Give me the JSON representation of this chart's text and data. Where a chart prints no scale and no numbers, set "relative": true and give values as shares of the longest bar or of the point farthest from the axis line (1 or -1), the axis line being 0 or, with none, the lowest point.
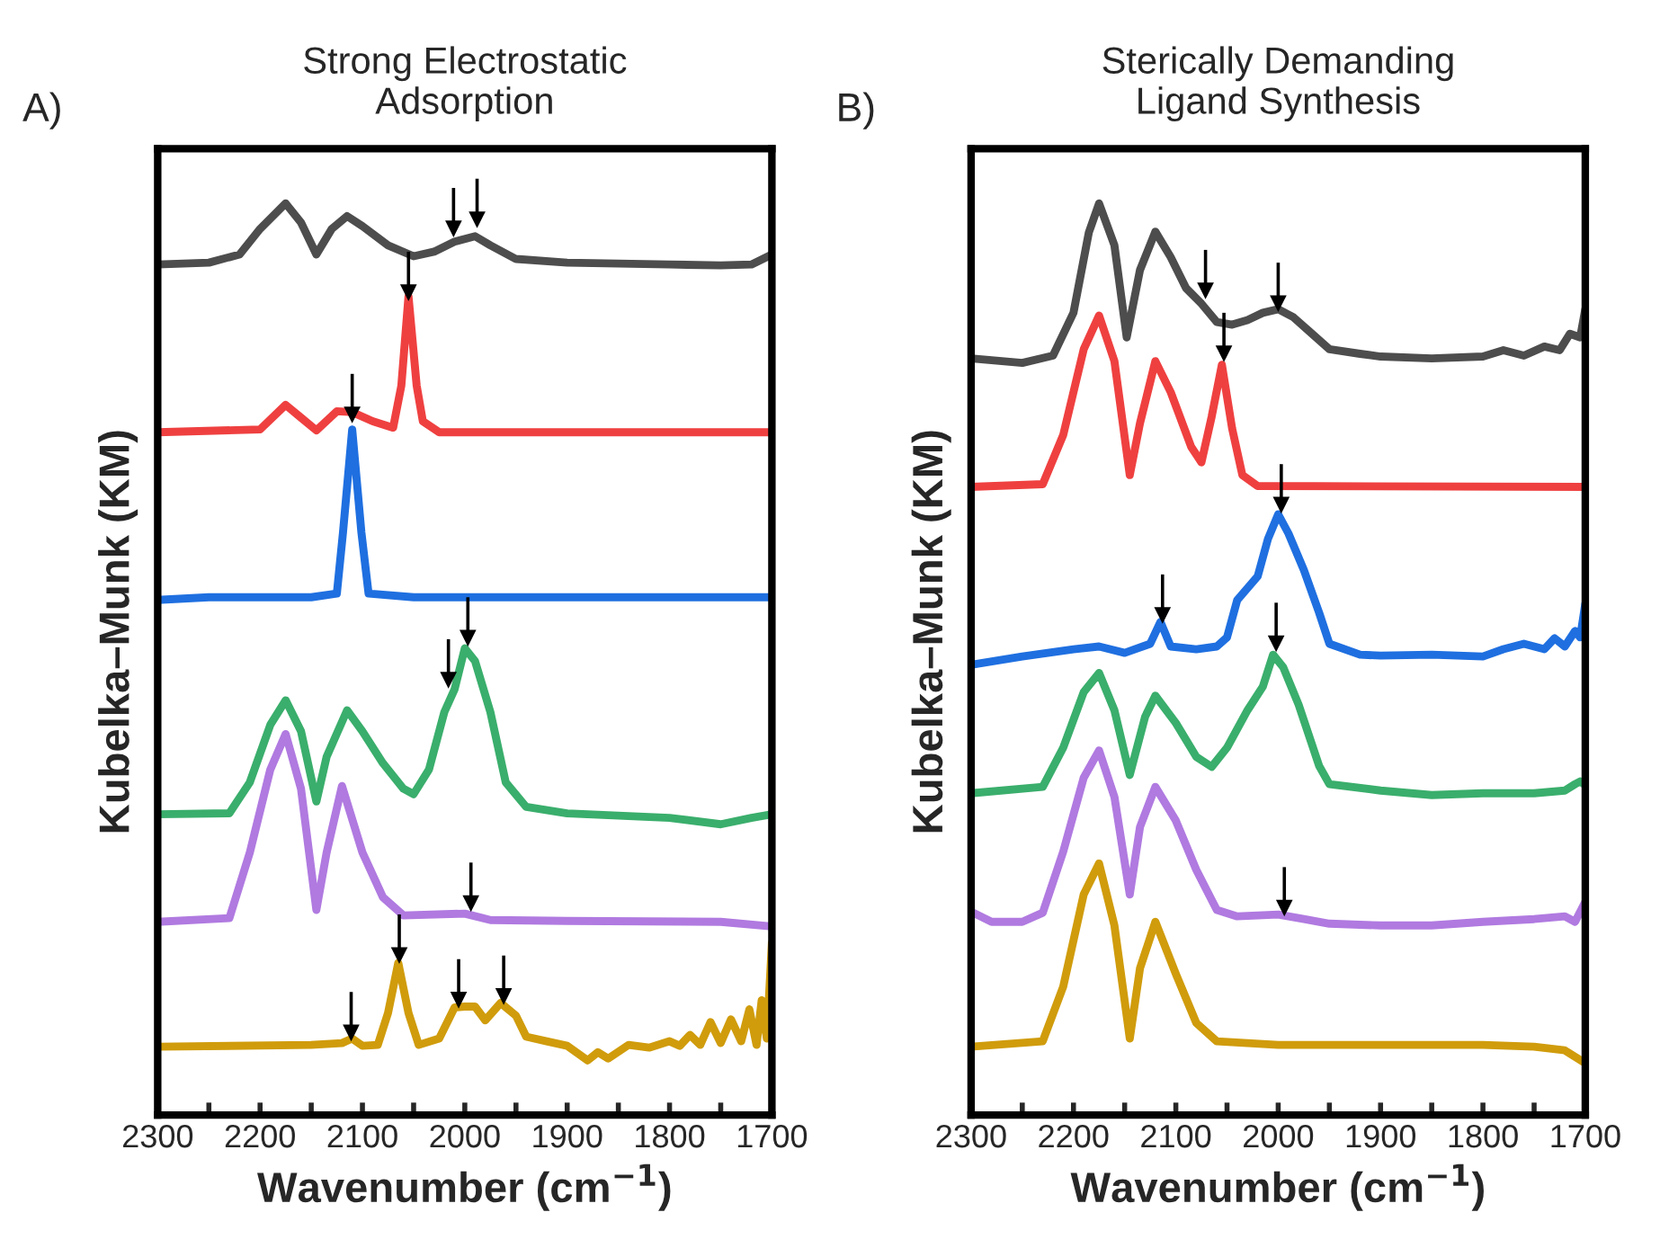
{
  "chart_data": [
    {
      "type": "line",
      "title": "Strong Electrostatic\nAdsorption",
      "xlabel": "Wavenumber (cm$^{−1}$)",
      "ylabel": "Kubelka–Munk (KM)",
      "relative": true,
      "xlim": [
        2300,
        1700
      ],
      "xticks": [
        2300,
        {
          "value": 2250,
          "label": null
        },
        2200,
        {
          "value": 2150,
          "label": null
        },
        2100,
        {
          "value": 2050,
          "label": null
        },
        2000,
        {
          "value": 1950,
          "label": null
        },
        1900,
        {
          "value": 1850,
          "label": null
        },
        1800,
        {
          "value": 1750,
          "label": null
        },
        1700
      ],
      "grid": false,
      "legend": false,
      "tick_labels": "x",
      "annotations": [
        "A)"
      ],
      "series": [
        {
          "type": "scatter",
          "marker": "triangle",
          "color": "#000000",
          "x": [
            2011,
            1988,
            2055,
            2110,
            2016,
            1997,
            1994,
            2111,
            2064,
            2006,
            1962
          ],
          "values": [
            0.972,
            0.982,
            0.902,
            0.768,
            0.477,
            0.523,
            0.232,
            0.09,
            0.175,
            0.126,
            0.13
          ]
        },
        {
          "color": "#4d4d4d",
          "x": [
            2300,
            2250,
            2220,
            2200,
            2175,
            2160,
            2145,
            2130,
            2115,
            2100,
            2075,
            2050,
            2030,
            2010,
            1990,
            1975,
            1950,
            1900,
            1800,
            1750,
            1720,
            1700
          ],
          "values": [
            0.933,
            0.935,
            0.944,
            0.972,
            1.0,
            0.979,
            0.944,
            0.972,
            0.986,
            0.975,
            0.954,
            0.942,
            0.947,
            0.958,
            0.964,
            0.954,
            0.939,
            0.935,
            0.933,
            0.932,
            0.933,
            0.944
          ]
        },
        {
          "color": "#ef4040",
          "x": [
            2300,
            2200,
            2175,
            2160,
            2145,
            2125,
            2110,
            2090,
            2070,
            2062,
            2055,
            2047,
            2041,
            2025,
            2000,
            1700
          ],
          "values": [
            0.749,
            0.752,
            0.779,
            0.765,
            0.751,
            0.772,
            0.771,
            0.761,
            0.754,
            0.8,
            0.898,
            0.8,
            0.761,
            0.749,
            0.749,
            0.749
          ]
        },
        {
          "color": "#1f6fe0",
          "x": [
            2300,
            2250,
            2200,
            2150,
            2125,
            2119,
            2110,
            2101,
            2094,
            2050,
            1900,
            1700
          ],
          "values": [
            0.565,
            0.568,
            0.568,
            0.568,
            0.572,
            0.639,
            0.752,
            0.639,
            0.572,
            0.568,
            0.568,
            0.568
          ]
        },
        {
          "color": "#3aae6c",
          "x": [
            2300,
            2230,
            2210,
            2190,
            2175,
            2160,
            2145,
            2135,
            2115,
            2100,
            2080,
            2060,
            2050,
            2035,
            2020,
            2010,
            2000,
            1990,
            1975,
            1960,
            1940,
            1900,
            1800,
            1750,
            1720,
            1700
          ],
          "values": [
            0.33,
            0.331,
            0.365,
            0.428,
            0.455,
            0.421,
            0.344,
            0.393,
            0.444,
            0.421,
            0.386,
            0.358,
            0.352,
            0.379,
            0.442,
            0.467,
            0.512,
            0.498,
            0.442,
            0.365,
            0.338,
            0.331,
            0.326,
            0.319,
            0.326,
            0.33
          ]
        },
        {
          "color": "#b07ae0",
          "x": [
            2300,
            2230,
            2210,
            2190,
            2175,
            2160,
            2145,
            2135,
            2120,
            2100,
            2080,
            2060,
            2000,
            1975,
            1900,
            1750,
            1700
          ],
          "values": [
            0.212,
            0.216,
            0.288,
            0.379,
            0.418,
            0.358,
            0.225,
            0.288,
            0.361,
            0.288,
            0.239,
            0.219,
            0.221,
            0.214,
            0.213,
            0.212,
            0.207
          ]
        },
        {
          "color": "#d09c0c",
          "x": [
            2300,
            2150,
            2120,
            2110,
            2100,
            2085,
            2075,
            2065,
            2055,
            2045,
            2025,
            2010,
            2000,
            1990,
            1980,
            1965,
            1950,
            1940,
            1920,
            1900,
            1880,
            1870,
            1860,
            1840,
            1820,
            1800,
            1790,
            1780,
            1770,
            1760,
            1750,
            1740,
            1730,
            1722,
            1715,
            1710,
            1705,
            1700
          ],
          "values": [
            0.075,
            0.077,
            0.079,
            0.084,
            0.076,
            0.077,
            0.112,
            0.167,
            0.112,
            0.077,
            0.084,
            0.118,
            0.119,
            0.119,
            0.104,
            0.123,
            0.109,
            0.086,
            0.081,
            0.076,
            0.06,
            0.069,
            0.062,
            0.077,
            0.074,
            0.081,
            0.076,
            0.088,
            0.077,
            0.102,
            0.079,
            0.105,
            0.081,
            0.116,
            0.077,
            0.126,
            0.084,
            0.189
          ]
        }
      ]
    },
    {
      "type": "line",
      "title": "Sterically Demanding\nLigand Synthesis",
      "xlabel": "Wavenumber (cm$^{−1}$)",
      "ylabel": "Kubelka–Munk (KM)",
      "relative": true,
      "xlim": [
        2300,
        1700
      ],
      "xticks": [
        2300,
        {
          "value": 2250,
          "label": null
        },
        2200,
        {
          "value": 2150,
          "label": null
        },
        2100,
        {
          "value": 2050,
          "label": null
        },
        2000,
        {
          "value": 1950,
          "label": null
        },
        1900,
        {
          "value": 1850,
          "label": null
        },
        1800,
        {
          "value": 1750,
          "label": null
        },
        1700
      ],
      "grid": false,
      "legend": false,
      "tick_labels": "x",
      "annotations": [
        "B)"
      ],
      "series": [
        {
          "type": "scatter",
          "marker": "triangle",
          "color": "#000000",
          "x": [
            2071,
            2000,
            2053,
            1997,
            2113,
            2002,
            1994
          ],
          "values": [
            0.904,
            0.89,
            0.835,
            0.669,
            0.548,
            0.517,
            0.227
          ]
        },
        {
          "color": "#4d4d4d",
          "x": [
            2300,
            2250,
            2220,
            2200,
            2185,
            2175,
            2160,
            2148,
            2135,
            2120,
            2105,
            2090,
            2075,
            2060,
            2045,
            2030,
            2015,
            2000,
            1985,
            1970,
            1950,
            1920,
            1900,
            1850,
            1800,
            1780,
            1760,
            1740,
            1725,
            1715,
            1705,
            1700
          ],
          "values": [
            0.83,
            0.825,
            0.833,
            0.88,
            0.968,
            1.0,
            0.954,
            0.853,
            0.927,
            0.969,
            0.941,
            0.907,
            0.89,
            0.87,
            0.867,
            0.872,
            0.88,
            0.884,
            0.875,
            0.86,
            0.84,
            0.835,
            0.832,
            0.83,
            0.832,
            0.839,
            0.833,
            0.843,
            0.839,
            0.857,
            0.853,
            0.884
          ]
        },
        {
          "color": "#ef4040",
          "x": [
            2300,
            2230,
            2210,
            2190,
            2175,
            2160,
            2145,
            2135,
            2120,
            2105,
            2085,
            2075,
            2065,
            2055,
            2045,
            2035,
            2020,
            1700
          ],
          "values": [
            0.689,
            0.692,
            0.746,
            0.84,
            0.877,
            0.827,
            0.702,
            0.759,
            0.827,
            0.793,
            0.733,
            0.716,
            0.766,
            0.823,
            0.753,
            0.702,
            0.69,
            0.689
          ]
        },
        {
          "color": "#1f6fe0",
          "x": [
            2300,
            2250,
            2200,
            2175,
            2150,
            2125,
            2115,
            2105,
            2080,
            2060,
            2050,
            2040,
            2020,
            2010,
            2000,
            1990,
            1975,
            1960,
            1950,
            1920,
            1900,
            1850,
            1800,
            1780,
            1760,
            1740,
            1730,
            1720,
            1710,
            1705,
            1700
          ],
          "values": [
            0.494,
            0.503,
            0.511,
            0.514,
            0.507,
            0.517,
            0.541,
            0.514,
            0.511,
            0.514,
            0.524,
            0.565,
            0.591,
            0.632,
            0.659,
            0.638,
            0.598,
            0.551,
            0.517,
            0.505,
            0.504,
            0.505,
            0.503,
            0.511,
            0.517,
            0.511,
            0.523,
            0.514,
            0.531,
            0.524,
            0.561
          ]
        },
        {
          "color": "#3aae6c",
          "x": [
            2300,
            2230,
            2210,
            2190,
            2175,
            2160,
            2145,
            2130,
            2120,
            2100,
            2080,
            2065,
            2050,
            2030,
            2015,
            2005,
            1995,
            1980,
            1960,
            1950,
            1900,
            1850,
            1800,
            1750,
            1720,
            1710,
            1705,
            1700
          ],
          "values": [
            0.353,
            0.36,
            0.403,
            0.464,
            0.485,
            0.444,
            0.373,
            0.437,
            0.46,
            0.43,
            0.393,
            0.382,
            0.403,
            0.444,
            0.47,
            0.505,
            0.491,
            0.45,
            0.383,
            0.363,
            0.356,
            0.351,
            0.353,
            0.353,
            0.356,
            0.363,
            0.366,
            0.362
          ]
        },
        {
          "color": "#b07ae0",
          "x": [
            2300,
            2280,
            2250,
            2230,
            2210,
            2190,
            2175,
            2160,
            2145,
            2135,
            2120,
            2100,
            2080,
            2060,
            2040,
            2000,
            1975,
            1950,
            1900,
            1850,
            1800,
            1750,
            1720,
            1710,
            1700
          ],
          "values": [
            0.223,
            0.212,
            0.212,
            0.222,
            0.289,
            0.37,
            0.4,
            0.349,
            0.242,
            0.316,
            0.36,
            0.323,
            0.269,
            0.225,
            0.218,
            0.22,
            0.215,
            0.21,
            0.208,
            0.208,
            0.212,
            0.215,
            0.218,
            0.212,
            0.234
          ]
        },
        {
          "color": "#d09c0c",
          "x": [
            2300,
            2230,
            2210,
            2190,
            2175,
            2160,
            2145,
            2135,
            2120,
            2100,
            2080,
            2060,
            2000,
            1900,
            1800,
            1750,
            1720,
            1700
          ],
          "values": [
            0.075,
            0.081,
            0.141,
            0.242,
            0.276,
            0.208,
            0.084,
            0.161,
            0.212,
            0.155,
            0.101,
            0.081,
            0.077,
            0.077,
            0.077,
            0.075,
            0.071,
            0.057
          ]
        }
      ]
    }
  ]
}
